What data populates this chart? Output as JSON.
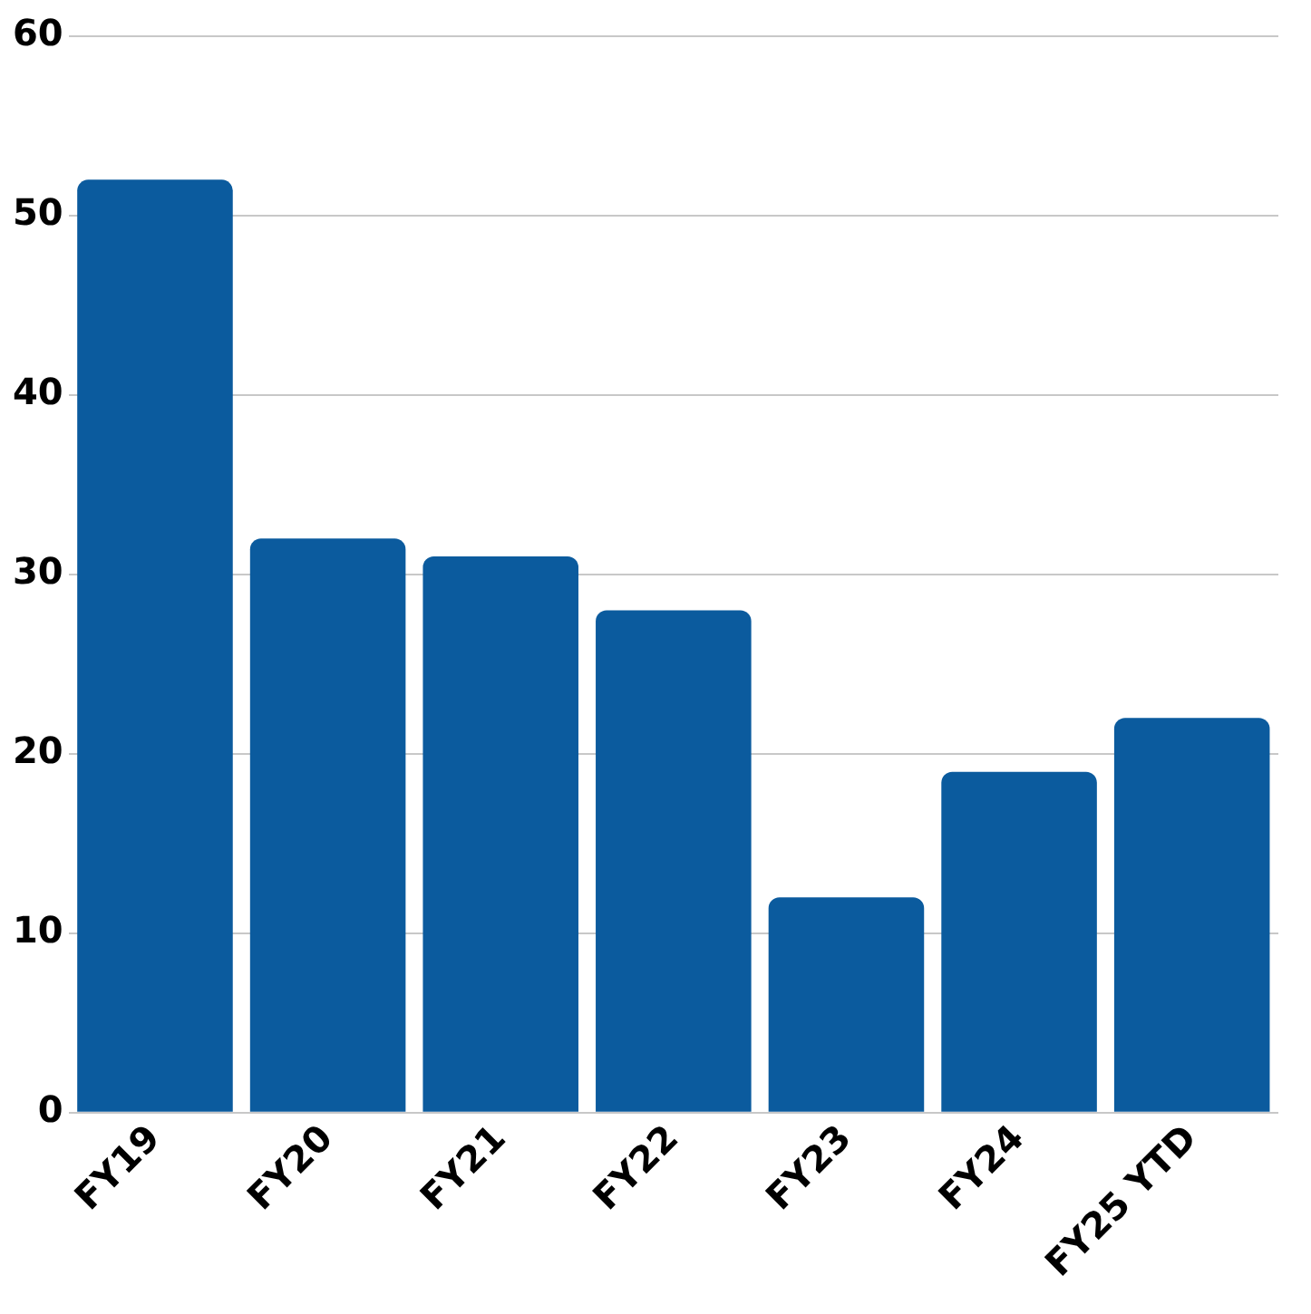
{
  "chart_data": {
    "type": "bar",
    "categories": [
      "FY19",
      "FY20",
      "FY21",
      "FY22",
      "FY23",
      "FY24",
      "FY25 YTD"
    ],
    "values": [
      52,
      32,
      31,
      28,
      12,
      19,
      22
    ],
    "color": "#0b5b9e",
    "ylim": [
      0,
      60
    ],
    "yticks": [
      0,
      10,
      20,
      30,
      40,
      50,
      60
    ],
    "grid": "y",
    "legend": false
  }
}
